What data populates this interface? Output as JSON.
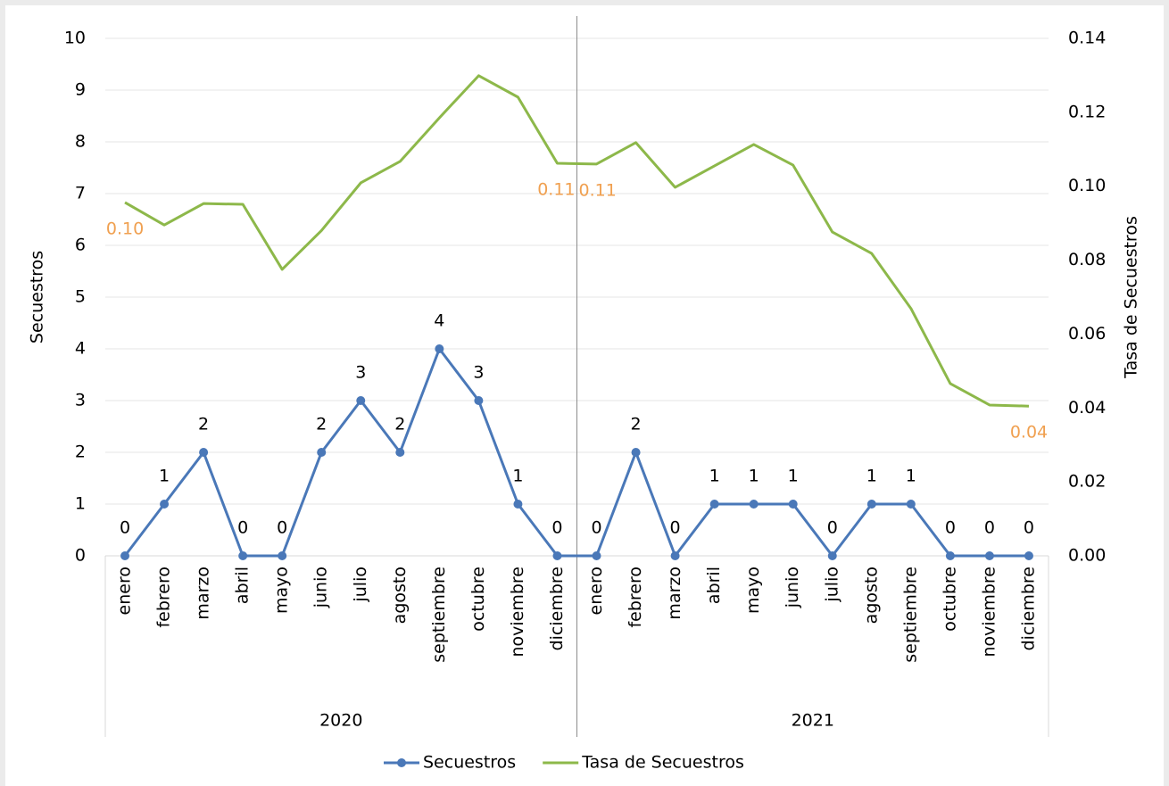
{
  "chart_data": {
    "type": "line",
    "y_label": "Secuestros",
    "y2_label": "Tasa de Secuestros",
    "categories": [
      "enero",
      "febrero",
      "marzo",
      "abril",
      "mayo",
      "junio",
      "julio",
      "agosto",
      "septiembre",
      "octubre",
      "noviembre",
      "diciembre",
      "enero",
      "febrero",
      "marzo",
      "abril",
      "mayo",
      "junio",
      "julio",
      "agosto",
      "septiembre",
      "octubre",
      "noviembre",
      "diciembre"
    ],
    "groups": [
      "2020",
      "2021"
    ],
    "series": [
      {
        "name": "Secuestros",
        "color": "#4a78b8",
        "values": [
          0,
          1,
          2,
          0,
          0,
          2,
          3,
          2,
          4,
          3,
          1,
          0,
          0,
          2,
          0,
          1,
          1,
          1,
          0,
          1,
          1,
          0,
          0,
          0
        ]
      },
      {
        "name": "Tasa de Secuestros",
        "color": "#8db84a",
        "axis": "y2",
        "values": [
          0.0956,
          0.0895,
          0.0953,
          0.0951,
          0.0775,
          0.088,
          0.1009,
          0.1067,
          0.1185,
          0.1299,
          0.1241,
          0.1062,
          0.106,
          0.1118,
          0.0997,
          0.1055,
          0.1113,
          0.1057,
          0.0876,
          0.0818,
          0.0669,
          0.0466,
          0.0408,
          0.0405
        ],
        "value_labels": [
          "0.10",
          null,
          null,
          null,
          null,
          null,
          null,
          null,
          null,
          null,
          null,
          "0.11",
          "0.11",
          null,
          null,
          null,
          null,
          null,
          null,
          null,
          null,
          null,
          null,
          "0.04"
        ]
      }
    ],
    "ylim": [
      0,
      10
    ],
    "yticks": [
      0,
      1,
      2,
      3,
      4,
      5,
      6,
      7,
      8,
      9,
      10
    ],
    "y2lim": [
      0,
      0.14
    ],
    "y2ticks": [
      {
        "value": 0,
        "label": "0.00"
      },
      {
        "value": 0.02,
        "label": "0.02"
      },
      {
        "value": 0.04,
        "label": "0.04"
      },
      {
        "value": 0.06,
        "label": "0.06"
      },
      {
        "value": 0.08,
        "label": "0.08"
      },
      {
        "value": 0.1,
        "label": "0.10"
      },
      {
        "value": 0.12,
        "label": "0.12"
      },
      {
        "value": 0.14,
        "label": "0.14"
      }
    ],
    "grid": true,
    "legend": "bottom"
  }
}
